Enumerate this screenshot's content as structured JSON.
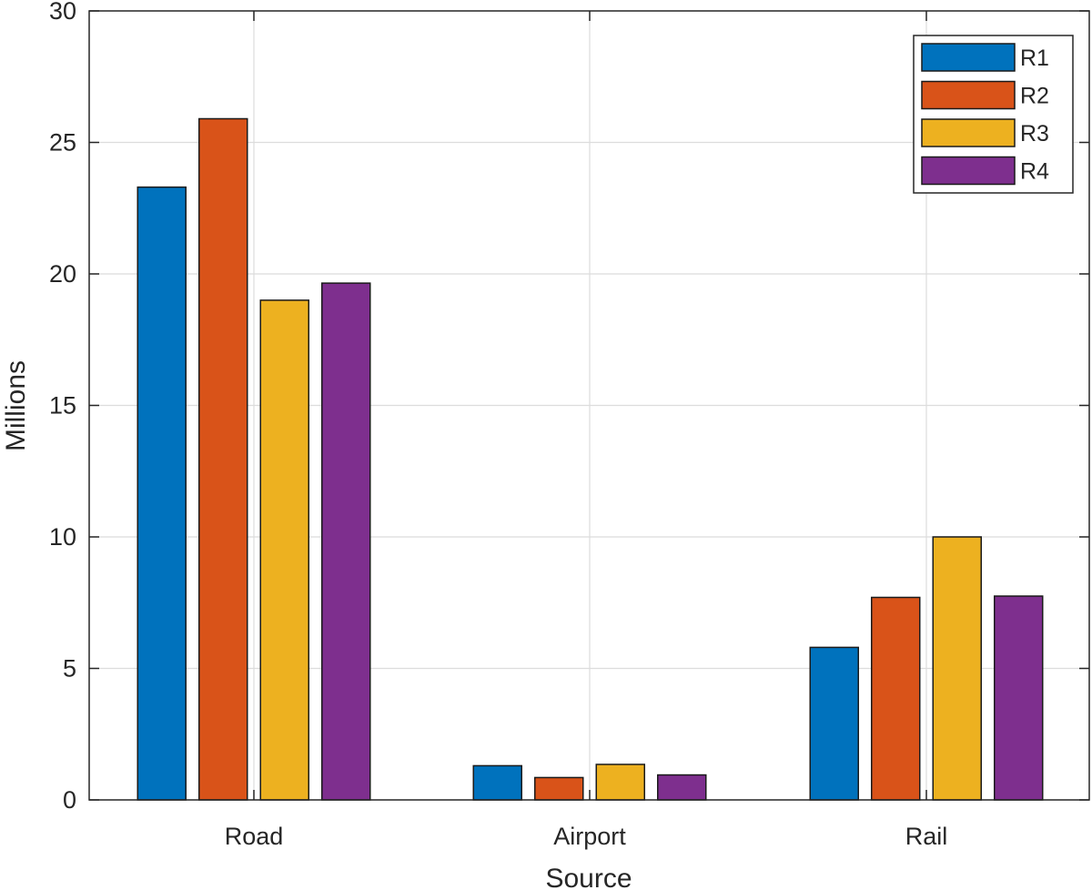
{
  "chart_data": {
    "type": "bar",
    "title": "",
    "xlabel": "Source",
    "ylabel": "Millions",
    "categories": [
      "Road",
      "Airport",
      "Rail"
    ],
    "series": [
      {
        "name": "R1",
        "color": "#0072BD",
        "values": [
          23.3,
          1.3,
          5.8
        ]
      },
      {
        "name": "R2",
        "color": "#D95319",
        "values": [
          25.9,
          0.85,
          7.7
        ]
      },
      {
        "name": "R3",
        "color": "#EDB120",
        "values": [
          19.0,
          1.35,
          10.0
        ]
      },
      {
        "name": "R4",
        "color": "#7E2F8E",
        "values": [
          19.65,
          0.95,
          7.75
        ]
      }
    ],
    "ylim": [
      0,
      30
    ],
    "yticks": [
      0,
      5,
      10,
      15,
      20,
      25,
      30
    ],
    "grid": true,
    "legend": "top-right"
  }
}
